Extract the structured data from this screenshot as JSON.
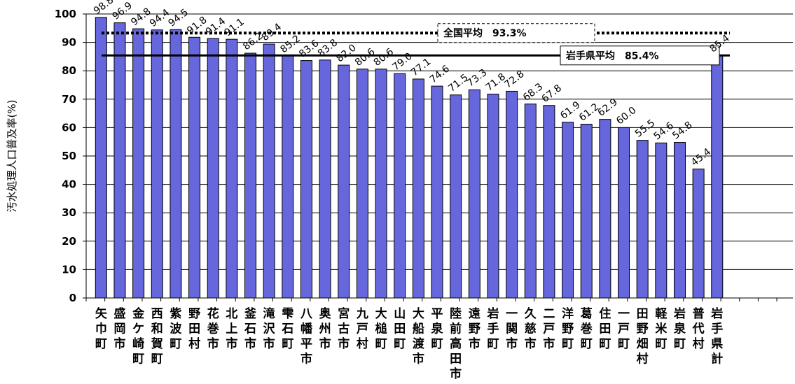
{
  "chart_data": {
    "type": "bar",
    "title": "",
    "xlabel": "",
    "ylabel": "汚水処理人口普及率(%)",
    "ylim": [
      0,
      100
    ],
    "yticks": [
      0,
      10,
      20,
      30,
      40,
      50,
      60,
      70,
      80,
      90,
      100
    ],
    "grid": true,
    "bar_color": "#6666dd",
    "categories": [
      "矢巾町",
      "盛岡市",
      "金ケ崎町",
      "西和賀町",
      "紫波町",
      "野田村",
      "花巻市",
      "北上市",
      "釜石市",
      "滝沢市",
      "雫石町",
      "八幡平市",
      "奥州市",
      "宮古市",
      "九戸村",
      "大槌町",
      "山田町",
      "大船渡市",
      "平泉町",
      "陸前高田市",
      "遠野市",
      "岩手町",
      "一関市",
      "久慈市",
      "二戸市",
      "洋野町",
      "葛巻町",
      "住田町",
      "一戸町",
      "田野畑村",
      "軽米町",
      "岩泉町",
      "普代村",
      "岩手県計"
    ],
    "values": [
      98.8,
      96.9,
      94.8,
      94.4,
      94.5,
      91.8,
      91.4,
      91.1,
      86.2,
      89.4,
      85.2,
      83.6,
      83.8,
      82.0,
      80.6,
      80.6,
      79.0,
      77.1,
      74.6,
      71.5,
      73.3,
      71.8,
      72.8,
      68.3,
      67.8,
      61.9,
      61.2,
      62.9,
      60.0,
      55.5,
      54.6,
      54.8,
      45.4,
      85.4
    ],
    "data_labels": [
      "98.8",
      "96.9",
      "94.8",
      "94.4",
      "94.5",
      "91.8",
      "91.4",
      "91.1",
      "86.2",
      "89.4",
      "85.2",
      "83.6",
      "83.8",
      "82.0",
      "80.6",
      "80.6",
      "79.0",
      "77.1",
      "74.6",
      "71.5",
      "73.3",
      "71.8",
      "72.8",
      "68.3",
      "67.8",
      "61.9",
      "61.2",
      "62.9",
      "60.0",
      "55.5",
      "54.6",
      "54.8",
      "45.4",
      "85.4"
    ],
    "reference_lines": [
      {
        "name": "全国平均",
        "value": 93.3,
        "label": "全国平均　93.3%",
        "style": "dotted"
      },
      {
        "name": "岩手県平均",
        "value": 85.4,
        "label": "岩手県平均　85.4%",
        "style": "solid"
      }
    ]
  }
}
